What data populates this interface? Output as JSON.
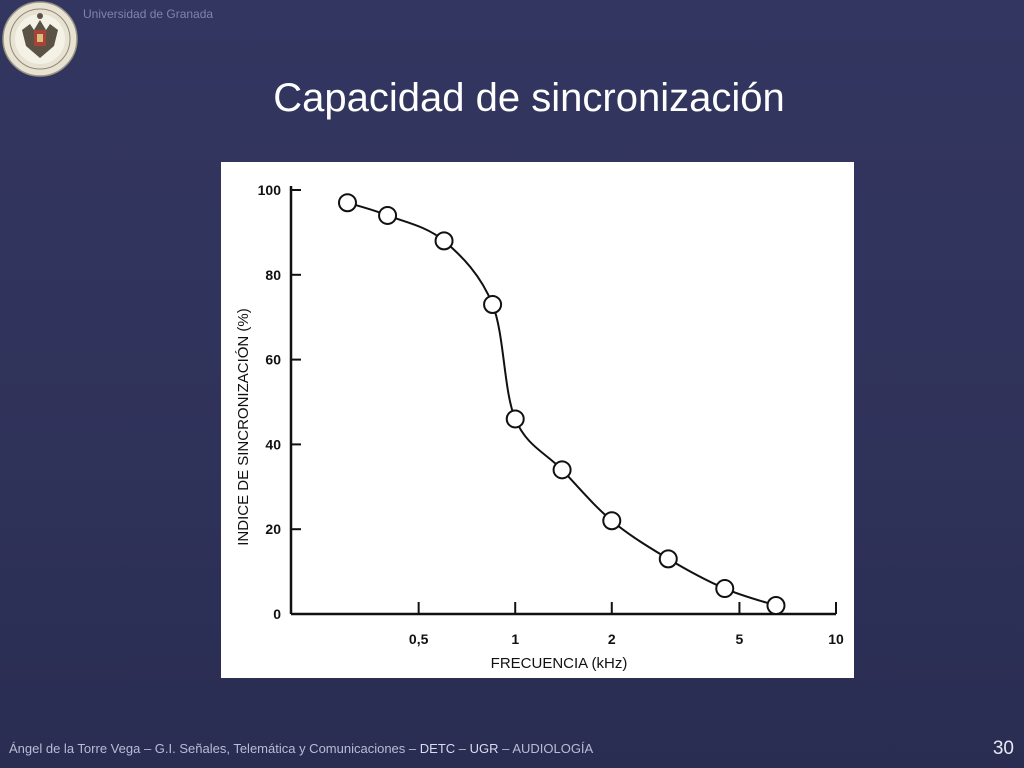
{
  "header": {
    "university": "Universidad de Granada",
    "seal_icon": "university-seal-icon"
  },
  "slide": {
    "title": "Capacidad de sincronización",
    "page_number": "30"
  },
  "footer": {
    "author": "Ángel de la Torre Vega",
    "group": "G.I. Señales, Telemática y Comunicaciones",
    "dept": "DETC",
    "univ": "UGR",
    "course": "AUDIOLOGÍA",
    "separator": "–"
  },
  "chart_data": {
    "type": "line",
    "xlabel": "FRECUENCIA (kHz)",
    "ylabel": "INDICE DE SINCRONIZACIÓN (%)",
    "xscale": "log",
    "xlim": [
      0.2,
      10
    ],
    "ylim": [
      0,
      100
    ],
    "x_ticks": [
      {
        "value": 0.5,
        "label": "0,5"
      },
      {
        "value": 1,
        "label": "1"
      },
      {
        "value": 2,
        "label": "2"
      },
      {
        "value": 5,
        "label": "5"
      },
      {
        "value": 10,
        "label": "10"
      }
    ],
    "y_ticks": [
      0,
      20,
      40,
      60,
      80,
      100
    ],
    "grid": false,
    "markers": "open-circle",
    "series": [
      {
        "x": [
          0.3,
          0.4,
          0.6,
          0.85,
          1.0,
          1.4,
          2.0,
          3.0,
          4.5,
          6.5
        ],
        "y": [
          97,
          94,
          88,
          73,
          46,
          34,
          22,
          13,
          6,
          2
        ]
      }
    ]
  }
}
